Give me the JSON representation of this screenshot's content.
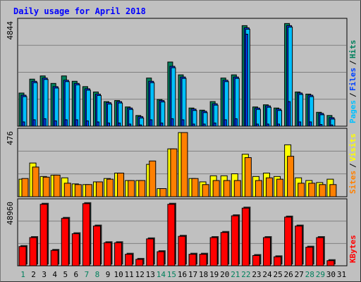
{
  "chart_data": {
    "type": "bar",
    "title": "Daily usage for April 2018",
    "categories": [
      "1",
      "2",
      "3",
      "4",
      "5",
      "6",
      "7",
      "8",
      "9",
      "10",
      "11",
      "12",
      "13",
      "14",
      "15",
      "16",
      "17",
      "18",
      "19",
      "20",
      "21",
      "22",
      "23",
      "24",
      "25",
      "26",
      "27",
      "28",
      "29",
      "30",
      "31"
    ],
    "weekend_days": [
      "1",
      "7",
      "8",
      "14",
      "15",
      "21",
      "22",
      "28",
      "29"
    ],
    "panels": [
      {
        "name": "top",
        "scale_max_label": "4844",
        "ylim": [
          0,
          4844
        ],
        "grid": true,
        "side_legend": [
          "Pages",
          "Files",
          "Hits"
        ],
        "series": [
          {
            "name": "Hits",
            "values": [
              1550,
              2200,
              2350,
              2000,
              2350,
              2100,
              1850,
              1600,
              1150,
              1200,
              900,
              500,
              2250,
              1250,
              3000,
              2400,
              850,
              750,
              1150,
              2250,
              2400,
              4700,
              900,
              1000,
              850,
              4800,
              1600,
              1500,
              650,
              500,
              0
            ]
          },
          {
            "name": "Files",
            "values": [
              1450,
              2100,
              2250,
              1850,
              2150,
              2000,
              1750,
              1500,
              1100,
              1150,
              850,
              450,
              2100,
              1200,
              2800,
              2300,
              800,
              700,
              1050,
              2150,
              2300,
              4600,
              850,
              950,
              800,
              4700,
              1550,
              1450,
              600,
              400,
              0
            ]
          },
          {
            "name": "Pages",
            "values": [
              200,
              300,
              350,
              250,
              300,
              300,
              250,
              200,
              150,
              150,
              100,
              60,
              300,
              150,
              350,
              300,
              100,
              100,
              150,
              300,
              350,
              4300,
              100,
              100,
              100,
              1150,
              200,
              200,
              80,
              60,
              0
            ]
          }
        ]
      },
      {
        "name": "middle",
        "scale_max_label": "476",
        "ylim": [
          0,
          476
        ],
        "grid": true,
        "side_legend": [
          "Sites",
          "Visits"
        ],
        "series": [
          {
            "name": "Visits",
            "values": [
              130,
              250,
              150,
              160,
              140,
              95,
              90,
              110,
              135,
              175,
              120,
              120,
              240,
              60,
              355,
              476,
              135,
              110,
              155,
              155,
              170,
              315,
              150,
              175,
              150,
              385,
              140,
              120,
              105,
              130,
              0
            ]
          },
          {
            "name": "Sites",
            "values": [
              135,
              220,
              145,
              160,
              100,
              90,
              90,
              110,
              130,
              175,
              120,
              120,
              265,
              60,
              355,
              476,
              135,
              90,
              120,
              120,
              120,
              290,
              120,
              140,
              130,
              300,
              100,
              100,
              90,
              90,
              0
            ]
          }
        ]
      },
      {
        "name": "bottom",
        "scale_max_label": "48960",
        "ylim": [
          0,
          48960
        ],
        "grid": true,
        "side_legend": [
          "KBytes"
        ],
        "series": [
          {
            "name": "KBytes",
            "values": [
              15000,
              22000,
              48000,
              12000,
              37000,
              25000,
              48500,
              31000,
              18000,
              18000,
              9000,
              5000,
              21000,
              11000,
              48000,
              23000,
              9000,
              9000,
              22000,
              26000,
              39000,
              45000,
              8000,
              22000,
              7000,
              38000,
              31000,
              14500,
              22000,
              4000,
              0
            ]
          }
        ]
      }
    ],
    "colors": {
      "background": "#c0c0c0",
      "hits": "#00805c",
      "files": "#0040ff",
      "pages": "#00c0ff",
      "visits": "#ffff00",
      "sites": "#ff8000",
      "kbytes": "#ff0000",
      "title": "#0000ff",
      "weekday_label": "#000000",
      "weekend_label": "#00805c"
    }
  }
}
